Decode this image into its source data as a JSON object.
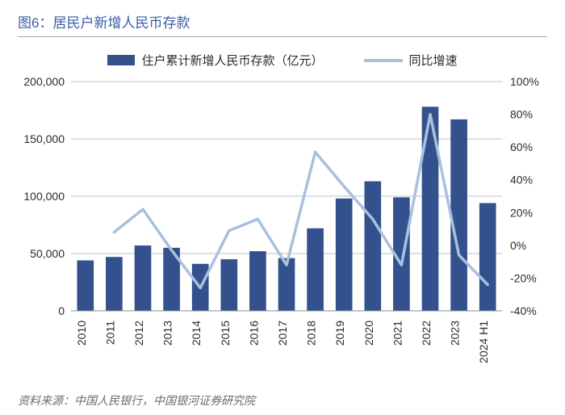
{
  "title": "图6：居民户新增人民币存款",
  "legend": {
    "bar_label": "住户累计新增人民币存款（亿元）",
    "line_label": "同比增速"
  },
  "chart": {
    "type": "bar+line",
    "categories": [
      "2010",
      "2011",
      "2012",
      "2013",
      "2014",
      "2015",
      "2016",
      "2017",
      "2018",
      "2019",
      "2020",
      "2021",
      "2022",
      "2023",
      "2024 H1"
    ],
    "bar_values": [
      44000,
      47000,
      57000,
      55000,
      41000,
      45000,
      52000,
      46000,
      72000,
      98000,
      113000,
      99000,
      178000,
      167000,
      94000
    ],
    "line_values": [
      null,
      8,
      22,
      -3,
      -26,
      9,
      16,
      -12,
      57,
      36,
      16,
      -12,
      80,
      -6,
      -24
    ],
    "bar_color": "#33518c",
    "line_color": "#a9c0de",
    "line_width": 3.5,
    "bar_width_ratio": 0.58,
    "background_color": "#ffffff",
    "grid_color": "#b8c0c8",
    "axis_color": "#8a8f96",
    "text_color": "#2b2b2b",
    "left_axis": {
      "min": 0,
      "max": 200000,
      "step": 50000,
      "format": "comma"
    },
    "right_axis": {
      "min": -40,
      "max": 100,
      "step": 20,
      "suffix": "%"
    },
    "label_fontsize": 14,
    "tick_fontsize": 14
  },
  "source": "资料来源：中国人民银行，中国银河证券研究院"
}
